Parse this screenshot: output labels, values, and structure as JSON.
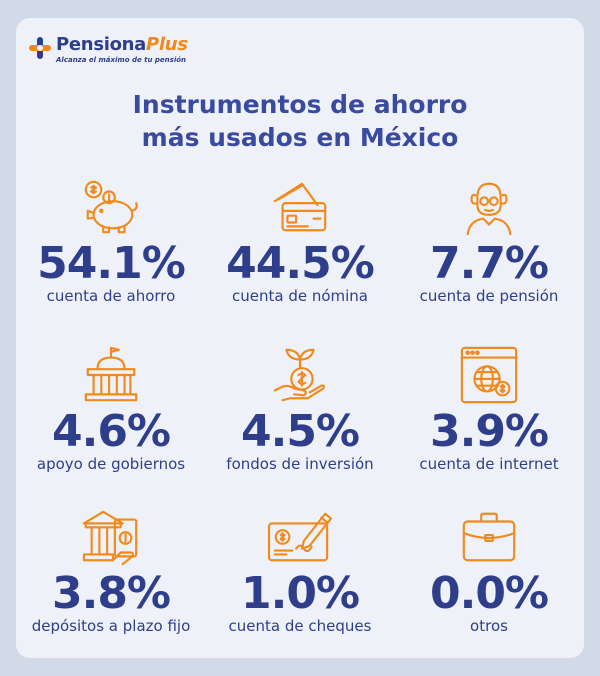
{
  "brand": {
    "name_main": "Pensiona",
    "name_accent": "Plus",
    "tagline": "Alcanza el máximo de tu pensión"
  },
  "title": {
    "line1": "Instrumentos de ahorro",
    "line2": "más usados en México"
  },
  "colors": {
    "primary": "#2f3e8a",
    "accent": "#f08a1c",
    "background": "#eef1f8"
  },
  "items": [
    {
      "value": "54.1%",
      "label": "cuenta de ahorro",
      "icon": "piggy-bank-icon"
    },
    {
      "value": "44.5%",
      "label": "cuenta de nómina",
      "icon": "credit-card-icon"
    },
    {
      "value": "7.7%",
      "label": "cuenta de pensión",
      "icon": "elderly-person-icon"
    },
    {
      "value": "4.6%",
      "label": "apoyo de gobiernos",
      "icon": "government-building-icon"
    },
    {
      "value": "4.5%",
      "label": "fondos de inversión",
      "icon": "investment-plant-icon"
    },
    {
      "value": "3.9%",
      "label": "cuenta de internet",
      "icon": "internet-browser-icon"
    },
    {
      "value": "3.8%",
      "label": "depósitos a plazo fijo",
      "icon": "bank-deposit-icon"
    },
    {
      "value": "1.0%",
      "label": "cuenta de cheques",
      "icon": "cheque-icon"
    },
    {
      "value": "0.0%",
      "label": "otros",
      "icon": "briefcase-icon"
    }
  ]
}
